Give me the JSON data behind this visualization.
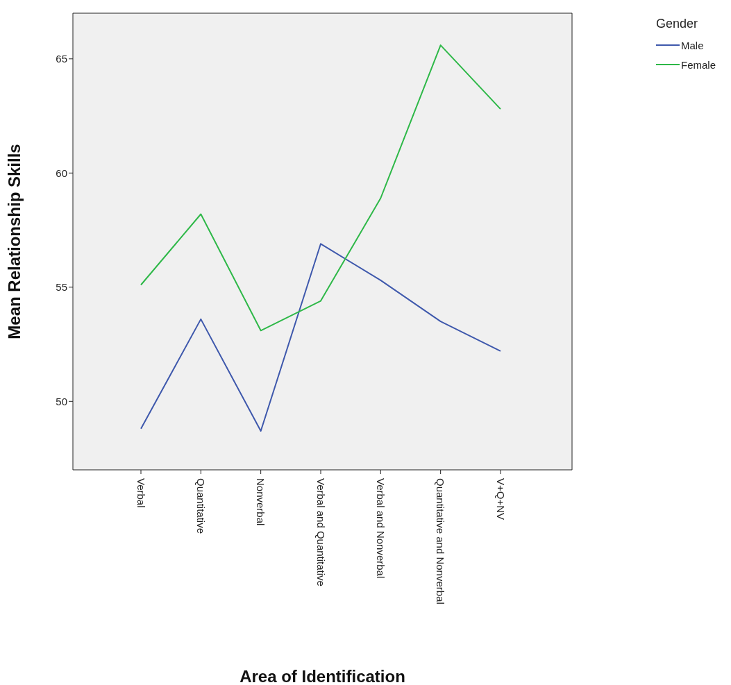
{
  "chart_data": {
    "type": "line",
    "xlabel": "Area of Identification",
    "ylabel": "Mean Relationship Skills",
    "legend_title": "Gender",
    "categories": [
      "Verbal",
      "Quantitative",
      "Nonverbal",
      "Verbal and Quantitative",
      "Verbal and Nonverbal",
      "Quantitative and Nonverbal",
      "V+Q+NV"
    ],
    "series": [
      {
        "name": "Male",
        "color": "#3e58ac",
        "values": [
          48.8,
          53.6,
          48.7,
          56.9,
          55.3,
          53.5,
          52.2
        ]
      },
      {
        "name": "Female",
        "color": "#2eb848",
        "values": [
          55.1,
          58.2,
          53.1,
          54.4,
          58.9,
          65.6,
          62.8
        ]
      }
    ],
    "ylim": [
      47,
      67
    ],
    "yticks": [
      50,
      55,
      60,
      65
    ],
    "grid": false,
    "legend": "top right",
    "marker": "none",
    "line_style": "solid"
  }
}
